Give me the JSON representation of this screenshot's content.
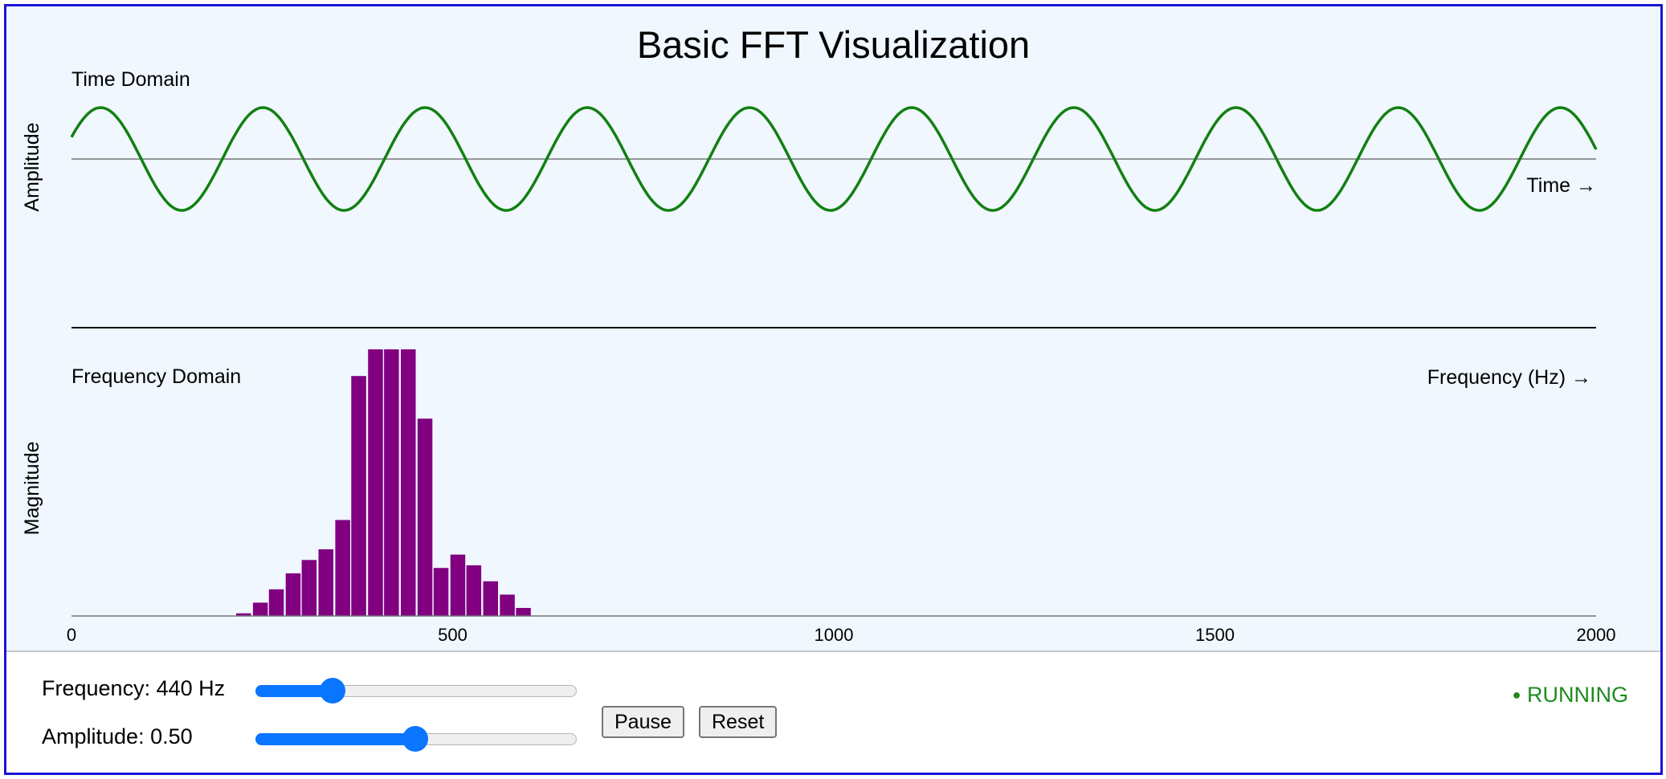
{
  "title": "Basic FFT Visualization",
  "colors": {
    "background": "#f0f7ff",
    "border": "#1a14d9",
    "wave": "#128012",
    "bars": "#800080",
    "status": "#1e8a1e",
    "slider": "#0a75ff"
  },
  "time_panel": {
    "title": "Time Domain",
    "ylabel": "Amplitude",
    "xlabel": "Time →"
  },
  "freq_panel": {
    "title": "Frequency Domain",
    "ylabel": "Magnitude",
    "xlabel": "Frequency (Hz) →"
  },
  "chart_data": [
    {
      "type": "line",
      "name": "time-domain",
      "title": "Time Domain",
      "ylabel": "Amplitude",
      "xlabel": "Time →",
      "cycles": 9.4,
      "phase_cycles": 0.07,
      "amplitude": 0.5,
      "ylim": [
        -1,
        1
      ],
      "grid": false
    },
    {
      "type": "bar",
      "name": "frequency-domain",
      "title": "Frequency Domain",
      "ylabel": "Magnitude",
      "xlabel": "Frequency (Hz) →",
      "xlim": [
        0,
        2000
      ],
      "xticks": [
        0,
        500,
        1000,
        1500,
        2000
      ],
      "bin_width": 21.6,
      "bins": [
        {
          "x": 216,
          "y": 0.01
        },
        {
          "x": 238,
          "y": 0.05
        },
        {
          "x": 259,
          "y": 0.1
        },
        {
          "x": 281,
          "y": 0.16
        },
        {
          "x": 302,
          "y": 0.21
        },
        {
          "x": 324,
          "y": 0.25
        },
        {
          "x": 346,
          "y": 0.36
        },
        {
          "x": 367,
          "y": 0.9
        },
        {
          "x": 389,
          "y": 1.0
        },
        {
          "x": 410,
          "y": 1.0
        },
        {
          "x": 432,
          "y": 1.0
        },
        {
          "x": 454,
          "y": 0.74
        },
        {
          "x": 475,
          "y": 0.18
        },
        {
          "x": 497,
          "y": 0.23
        },
        {
          "x": 518,
          "y": 0.19
        },
        {
          "x": 540,
          "y": 0.13
        },
        {
          "x": 562,
          "y": 0.08
        },
        {
          "x": 583,
          "y": 0.03
        }
      ],
      "ylim": [
        0,
        1
      ],
      "grid": false
    }
  ],
  "controls": {
    "frequency_label": "Frequency: 440 Hz",
    "frequency_value": 440,
    "frequency_fraction": 0.24,
    "amplitude_label": "Amplitude: 0.50",
    "amplitude_value": 0.5,
    "amplitude_fraction": 0.5,
    "pause_label": "Pause",
    "reset_label": "Reset",
    "status_dot": "●",
    "status_text": "RUNNING"
  }
}
